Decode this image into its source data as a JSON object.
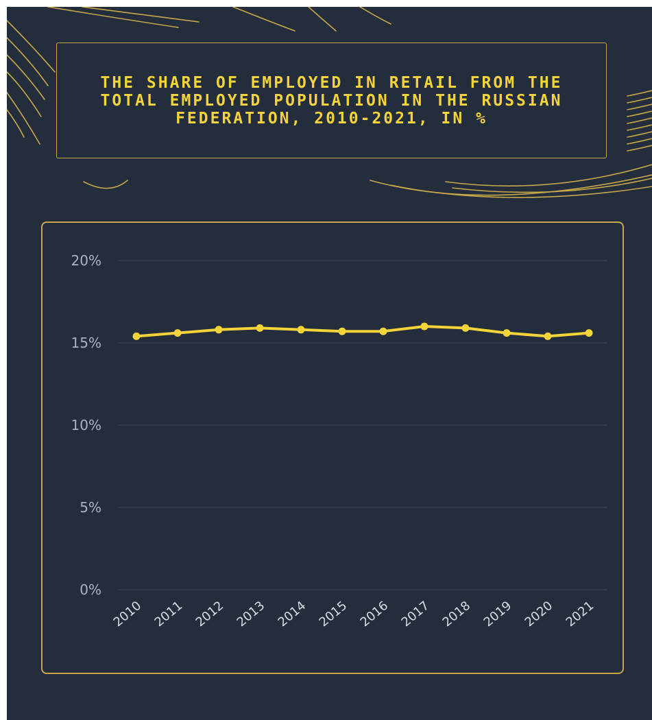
{
  "colors": {
    "background": "#232d3b",
    "accent": "#f5d43a",
    "frame": "#c9a94a",
    "grid": "#3c4757",
    "axis_text": "#aab4c2"
  },
  "chart_data": {
    "type": "line",
    "title": "THE SHARE OF EMPLOYED IN RETAIL FROM THE TOTAL EMPLOYED POPULATION IN THE RUSSIAN FEDERATION, 2010-2021, IN %",
    "xlabel": "",
    "ylabel": "",
    "x": [
      "2010",
      "2011",
      "2012",
      "2013",
      "2014",
      "2015",
      "2016",
      "2017",
      "2018",
      "2019",
      "2020",
      "2021"
    ],
    "series": [
      {
        "values": [
          15.4,
          15.6,
          15.8,
          15.9,
          15.8,
          15.7,
          15.7,
          16.0,
          15.9,
          15.6,
          15.4,
          15.6
        ],
        "color": "#f5d43a"
      }
    ],
    "ylim": [
      0,
      20
    ],
    "yticks": [
      0,
      5,
      10,
      15,
      20
    ],
    "ytick_labels": [
      "0%",
      "5%",
      "10%",
      "15%",
      "20%"
    ],
    "grid": true,
    "legend": "none"
  }
}
